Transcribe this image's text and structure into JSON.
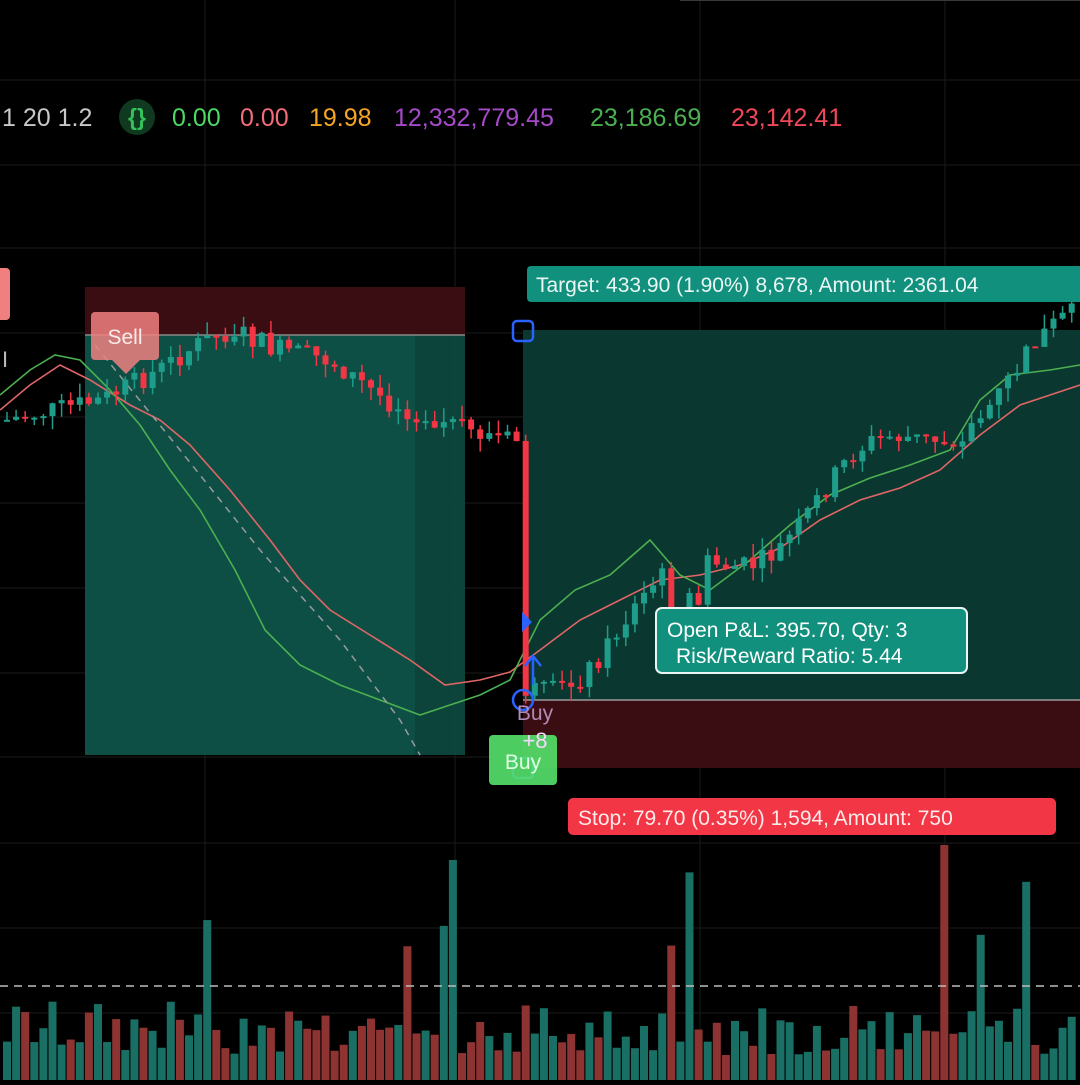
{
  "indicator_bar": {
    "params": "1 20 1.2",
    "icon": "code-braces-icon",
    "values": [
      {
        "text": "0.00",
        "color": "#4cd964"
      },
      {
        "text": "0.00",
        "color": "#f26d78"
      },
      {
        "text": "19.98",
        "color": "#f5a623"
      },
      {
        "text": "12,332,779.45",
        "color": "#a64ac9"
      },
      {
        "text": "23,186.69",
        "color": "#4caf50"
      },
      {
        "text": "23,142.41",
        "color": "#f0475a"
      }
    ]
  },
  "colors": {
    "up": "#1e9e8a",
    "down": "#f23645",
    "vol_up": "#1a6f65",
    "vol_down": "#8d3433",
    "ema_fast": "#4caf50",
    "ema_slow": "#e06666",
    "target_zone": "#0d4a40",
    "stop_zone": "#3a0d12",
    "accent_blue": "#2962ff",
    "label_green": "#12907e",
    "label_red": "#f23645",
    "buy_green": "#55e26b"
  },
  "labels": {
    "sell": "Sell",
    "buy": "Buy",
    "buy_count": "+8",
    "buy_badge": "Buy",
    "left_edge_tag": "I"
  },
  "position_tool": {
    "target_label": "Target: 433.90 (1.90%) 8,678, Amount: 2361.04",
    "stop_label": "Stop: 79.70 (0.35%) 1,594, Amount: 750",
    "pnl_line1": "Open P&L: 395.70, Qty: 3",
    "pnl_line2": "Risk/Reward Ratio: 5.44"
  },
  "chart_data": {
    "type": "candlestick",
    "candles": [
      [
        440,
        395,
        440,
        430
      ],
      [
        425,
        400,
        445,
        420
      ],
      [
        420,
        350,
        420,
        360
      ],
      [
        360,
        330,
        360,
        350
      ],
      [
        340,
        300,
        340,
        320
      ],
      [
        315,
        315,
        330,
        330
      ],
      [
        330,
        335,
        350,
        350
      ],
      [
        320,
        290,
        325,
        315
      ],
      [
        310,
        312,
        330,
        328
      ],
      [
        330,
        340,
        345,
        345
      ],
      [
        345,
        370,
        375,
        405
      ],
      [
        365,
        340,
        365,
        405
      ],
      [
        398,
        392,
        405,
        398
      ],
      [
        400,
        395,
        415,
        412
      ],
      [
        408,
        405,
        425,
        415
      ],
      [
        410,
        415,
        455,
        455
      ],
      [
        420,
        425,
        445,
        445
      ],
      [
        425,
        430,
        455,
        455
      ],
      [
        440,
        445,
        470,
        470
      ],
      [
        450,
        445,
        465,
        462
      ],
      [
        450,
        470,
        485,
        482
      ],
      [
        470,
        500,
        510,
        510
      ],
      [
        500,
        515,
        525,
        518
      ],
      [
        515,
        512,
        520,
        520
      ],
      [
        510,
        500,
        520,
        518
      ],
      [
        520,
        510,
        525,
        515
      ],
      [
        510,
        520,
        530,
        525
      ],
      [
        600,
        570,
        580,
        640
      ],
      [
        590,
        600,
        635,
        615
      ],
      [
        610,
        620,
        630,
        620
      ],
      [
        625,
        620,
        635,
        630
      ],
      [
        610,
        590,
        615,
        635
      ],
      [
        605,
        590,
        615,
        600
      ],
      [
        650,
        655,
        705,
        700
      ],
      [
        690,
        710,
        715,
        705
      ],
      [
        590,
        590,
        600,
        635
      ],
      [
        595,
        625,
        635,
        620
      ],
      [
        660,
        710,
        715,
        715
      ],
      [
        670,
        710,
        740,
        725
      ],
      [
        680,
        670,
        700,
        680
      ],
      [
        680,
        700,
        710,
        705
      ],
      [
        700,
        700,
        705,
        695
      ],
      [
        680,
        690,
        695,
        690
      ],
      [
        690,
        670,
        710,
        700
      ],
      [
        695,
        700,
        710,
        705
      ],
      [
        685,
        690,
        700,
        690
      ],
      [
        695,
        700,
        715,
        705
      ],
      [
        705,
        725,
        730,
        730
      ],
      [
        715,
        735,
        745,
        745
      ],
      [
        745,
        740,
        750,
        750
      ],
      [
        720,
        730,
        755,
        755
      ],
      [
        610,
        665,
        675,
        690
      ],
      [
        660,
        690,
        695,
        670
      ],
      [
        690,
        680,
        695,
        690
      ],
      [
        675,
        690,
        695,
        680
      ],
      [
        665,
        680,
        700,
        695
      ],
      [
        680,
        690,
        695,
        690
      ],
      [
        665,
        690,
        680,
        695
      ],
      [
        665,
        690,
        695,
        690
      ],
      [
        665,
        650,
        680,
        690
      ],
      [
        640,
        615,
        640,
        650
      ],
      [
        630,
        585,
        630,
        640
      ],
      [
        600,
        565,
        605,
        615
      ],
      [
        570,
        580,
        600,
        590
      ],
      [
        595,
        580,
        595,
        590
      ],
      [
        560,
        565,
        590,
        585
      ],
      [
        575,
        560,
        575,
        580
      ],
      [
        560,
        560,
        575,
        575
      ],
      [
        540,
        565,
        575,
        550
      ],
      [
        555,
        540,
        560,
        550
      ],
      [
        540,
        550,
        560,
        545
      ],
      [
        540,
        550,
        540,
        540
      ],
      [
        515,
        530,
        545,
        530
      ],
      [
        500,
        510,
        525,
        520
      ],
      [
        505,
        550,
        505,
        540
      ],
      [
        555,
        510,
        560,
        555
      ],
      [
        490,
        505,
        500,
        515
      ],
      [
        480,
        485,
        560,
        480
      ],
      [
        480,
        500,
        505,
        490
      ],
      [
        480,
        490,
        510,
        510
      ],
      [
        485,
        465,
        500,
        470
      ],
      [
        460,
        510,
        480,
        520
      ],
      [
        470,
        500,
        470,
        475
      ],
      [
        480,
        500,
        475,
        520
      ],
      [
        475,
        500,
        480,
        520
      ],
      [
        470,
        440,
        470,
        470
      ],
      [
        455,
        450,
        460,
        460
      ],
      [
        450,
        460,
        460,
        455
      ],
      [
        460,
        470,
        440,
        460
      ],
      [
        465,
        475,
        480,
        470
      ],
      [
        455,
        470,
        480,
        480
      ],
      [
        440,
        430,
        450,
        430
      ],
      [
        430,
        430,
        440,
        430
      ],
      [
        410,
        420,
        420,
        420
      ],
      [
        410,
        405,
        415,
        410
      ],
      [
        380,
        390,
        395,
        390
      ],
      [
        370,
        385,
        400,
        380
      ],
      [
        370,
        400,
        385,
        360
      ],
      [
        385,
        380,
        390,
        385
      ],
      [
        370,
        400,
        370,
        355
      ],
      [
        350,
        380,
        370,
        345
      ],
      [
        345,
        340,
        350,
        340
      ],
      [
        340,
        330,
        355,
        335
      ],
      [
        330,
        340,
        350,
        335
      ]
    ],
    "volume_note": "volume panel below price; dashed volume MA line"
  }
}
